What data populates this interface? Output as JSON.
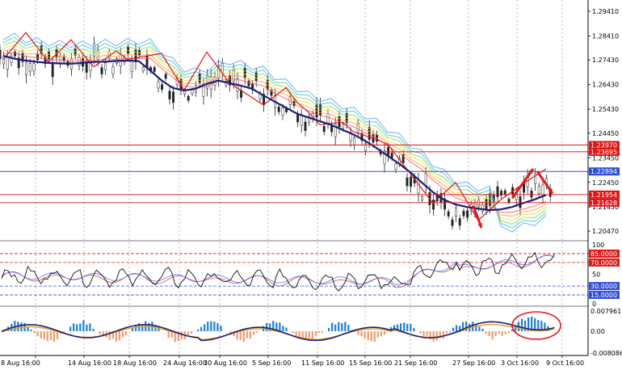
{
  "colors": {
    "up_bar": "#1e7fd6",
    "down_bar": "#f29a6b",
    "ma": "#1b1f7a",
    "zigzag": "#e01818",
    "level_red": "#e01818",
    "level_blue": "#3050d8",
    "rsi_black": "#111111",
    "rsi_blue": "#6f7cff",
    "rsi_red": "#d76161"
  },
  "price_axis": {
    "labels": [
      "1.29410",
      "1.28410",
      "1.27430",
      "1.26430",
      "1.25430",
      "1.24450",
      "1.23450",
      "1.22450",
      "1.21450",
      "1.20470"
    ],
    "levels": [
      {
        "label": "1.23970",
        "color": "level_red"
      },
      {
        "label": "1.23695",
        "color": "level_red"
      },
      {
        "label": "1.22894",
        "color": "level_blue"
      },
      {
        "label": "1.21954",
        "color": "level_red"
      },
      {
        "label": "1.21628",
        "color": "level_red"
      }
    ]
  },
  "rsi_axis": {
    "labels": [
      "100",
      "50",
      "0"
    ],
    "levels": [
      {
        "label": "85.0000",
        "color": "level_red"
      },
      {
        "label": "70.0000",
        "color": "level_red"
      },
      {
        "label": "30.0000",
        "color": "level_blue"
      },
      {
        "label": "15.0000",
        "color": "level_blue"
      }
    ]
  },
  "macd_axis": {
    "labels": [
      "0.0079617",
      "0.00",
      "-0.0080865"
    ]
  },
  "time_axis": {
    "labels": [
      "8 Aug 16:00",
      "14 Aug 16:00",
      "18 Aug 16:00",
      "24 Aug 16:00",
      "30 Aug 16:00",
      "5 Sep 16:00",
      "11 Sep 16:00",
      "15 Sep 16:00",
      "21 Sep 16:00",
      "27 Sep 16:00",
      "3 Oct 16:00",
      "9 Oct 16:00"
    ]
  },
  "chart_data": {
    "type": "line",
    "series": [
      {
        "values": [
          1.276,
          1.2748,
          1.2741,
          1.2735,
          1.2731,
          1.2729,
          1.2728,
          1.2731,
          1.2735,
          1.2736,
          1.2739,
          1.2741,
          1.2738,
          1.27,
          1.266,
          1.2629,
          1.2619,
          1.2626,
          1.2646,
          1.2659,
          1.2649,
          1.2639,
          1.2626,
          1.2599,
          1.2574,
          1.2549,
          1.2524,
          1.2509,
          1.2494,
          1.2479,
          1.2459,
          1.2439,
          1.2414,
          1.2385,
          1.2353,
          1.2321,
          1.2286,
          1.2245,
          1.2205,
          1.2174,
          1.2155,
          1.2145,
          1.2138,
          1.2132,
          1.2135,
          1.2145,
          1.2161,
          1.2176,
          1.2194
        ]
      }
    ]
  }
}
